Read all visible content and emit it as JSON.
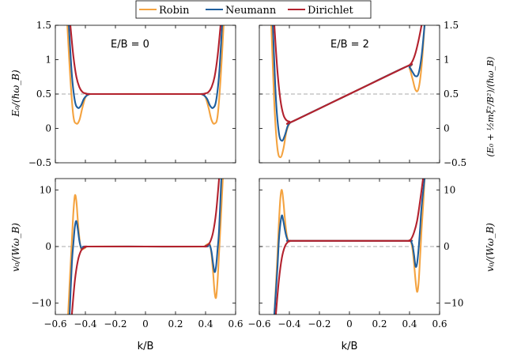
{
  "legend": {
    "entries": [
      {
        "label": "Robin",
        "color": "#f4a340"
      },
      {
        "label": "Neumann",
        "color": "#1f5f9e"
      },
      {
        "label": "Dirichlet",
        "color": "#b3222e"
      }
    ],
    "placement": "top-center"
  },
  "panels_text": {
    "left_title": "E/B = 0",
    "right_title": "E/B = 2",
    "top_left_ylabel": "E₀/(ℏω_B)",
    "top_right_ylabel": "(E₀ + ½mξ²/B²)/(ℏω_B)",
    "bottom_left_ylabel": "v₀/(Wω_B)",
    "bottom_right_ylabel": "v₀/(Wω_B)",
    "xlabel": "k/B"
  },
  "chart_data": [
    {
      "type": "line",
      "panel": "top-left",
      "title": "E/B = 0",
      "ylabel": "E₀/(ℏω_B)",
      "xlim": [
        -0.6,
        0.6
      ],
      "ylim": [
        -0.5,
        1.5
      ],
      "x_ticks": [
        -0.6,
        -0.4,
        -0.2,
        0,
        0.2,
        0.4,
        0.6
      ],
      "y_ticks": [
        -0.5,
        0,
        0.5,
        1,
        1.5
      ],
      "reference_line": 0.5,
      "series": [
        {
          "name": "Robin",
          "x": [
            -0.52,
            -0.5,
            -0.48,
            -0.46,
            -0.44,
            -0.42,
            -0.4,
            -0.38,
            -0.35,
            0,
            0.35,
            0.38,
            0.4,
            0.42,
            0.44,
            0.46,
            0.48,
            0.5,
            0.52
          ],
          "y": [
            1.5,
            0.72,
            0.18,
            0.07,
            0.12,
            0.3,
            0.45,
            0.49,
            0.5,
            0.5,
            0.5,
            0.49,
            0.45,
            0.3,
            0.12,
            0.07,
            0.18,
            0.72,
            1.5
          ]
        },
        {
          "name": "Neumann",
          "x": [
            -0.51,
            -0.49,
            -0.47,
            -0.45,
            -0.43,
            -0.41,
            -0.39,
            -0.37,
            -0.35,
            0,
            0.35,
            0.37,
            0.39,
            0.41,
            0.43,
            0.45,
            0.47,
            0.49,
            0.51
          ],
          "y": [
            1.5,
            0.78,
            0.4,
            0.3,
            0.33,
            0.43,
            0.48,
            0.5,
            0.5,
            0.5,
            0.5,
            0.5,
            0.48,
            0.43,
            0.33,
            0.3,
            0.4,
            0.78,
            1.5
          ]
        },
        {
          "name": "Dirichlet",
          "x": [
            -0.5,
            -0.48,
            -0.46,
            -0.44,
            -0.42,
            -0.4,
            -0.38,
            -0.36,
            0,
            0.36,
            0.38,
            0.4,
            0.42,
            0.44,
            0.46,
            0.48,
            0.5
          ],
          "y": [
            1.5,
            1.05,
            0.75,
            0.6,
            0.53,
            0.51,
            0.5,
            0.5,
            0.5,
            0.5,
            0.5,
            0.51,
            0.53,
            0.6,
            0.75,
            1.05,
            1.5
          ]
        }
      ]
    },
    {
      "type": "line",
      "panel": "top-right",
      "title": "E/B = 2",
      "ylabel": "(E₀ + ½mξ²/B²)/(ℏω_B)",
      "xlim": [
        -0.6,
        0.6
      ],
      "ylim": [
        -0.5,
        1.5
      ],
      "x_ticks": [
        -0.6,
        -0.4,
        -0.2,
        0,
        0.2,
        0.4,
        0.6
      ],
      "y_ticks": [
        -0.5,
        0,
        0.5,
        1,
        1.5
      ],
      "reference_line": 0.5,
      "series": [
        {
          "name": "Robin",
          "x": [
            -0.52,
            -0.5,
            -0.48,
            -0.46,
            -0.44,
            -0.42,
            -0.4,
            -0.38,
            0,
            0.38,
            0.4,
            0.42,
            0.44,
            0.46,
            0.48,
            0.5
          ],
          "y": [
            1.5,
            0.35,
            -0.28,
            -0.42,
            -0.3,
            -0.05,
            0.07,
            0.1,
            0.5,
            0.9,
            0.87,
            0.72,
            0.56,
            0.58,
            0.9,
            1.5
          ]
        },
        {
          "name": "Neumann",
          "x": [
            -0.51,
            -0.49,
            -0.47,
            -0.45,
            -0.43,
            -0.41,
            -0.39,
            -0.38,
            0,
            0.38,
            0.4,
            0.42,
            0.44,
            0.46,
            0.48,
            0.5
          ],
          "y": [
            1.5,
            0.45,
            -0.06,
            -0.18,
            -0.1,
            0.04,
            0.09,
            0.1,
            0.5,
            0.9,
            0.89,
            0.82,
            0.76,
            0.8,
            1.05,
            1.5
          ]
        },
        {
          "name": "Dirichlet",
          "x": [
            -0.5,
            -0.48,
            -0.46,
            -0.44,
            -0.42,
            -0.4,
            -0.38,
            0,
            0.38,
            0.4,
            0.42,
            0.44,
            0.46,
            0.48
          ],
          "y": [
            1.5,
            0.85,
            0.42,
            0.2,
            0.12,
            0.1,
            0.1,
            0.5,
            0.9,
            0.92,
            0.98,
            1.1,
            1.28,
            1.5
          ]
        }
      ]
    },
    {
      "type": "line",
      "panel": "bottom-left",
      "ylabel": "v₀/(Wω_B)",
      "xlabel": "k/B",
      "xlim": [
        -0.6,
        0.6
      ],
      "ylim": [
        -12,
        12
      ],
      "x_ticks": [
        -0.6,
        -0.4,
        -0.2,
        0,
        0.2,
        0.4,
        0.6
      ],
      "y_ticks": [
        -10,
        0,
        10
      ],
      "reference_line": 0,
      "series": [
        {
          "name": "Robin",
          "x": [
            -0.515,
            -0.5,
            -0.49,
            -0.48,
            -0.47,
            -0.46,
            -0.45,
            -0.44,
            -0.43,
            -0.42,
            -0.4,
            -0.38,
            0,
            0.38,
            0.4,
            0.42,
            0.43,
            0.44,
            0.45,
            0.46,
            0.47,
            0.48,
            0.49,
            0.5,
            0.515
          ],
          "y": [
            -12,
            -4,
            1,
            6,
            9,
            8,
            4.5,
            1.5,
            -0.3,
            -0.5,
            -0.2,
            0,
            0,
            0,
            0.2,
            0.5,
            0.3,
            -1.5,
            -4.5,
            -8,
            -9,
            -6,
            -1,
            4,
            12
          ]
        },
        {
          "name": "Neumann",
          "x": [
            -0.505,
            -0.49,
            -0.48,
            -0.47,
            -0.46,
            -0.45,
            -0.44,
            -0.43,
            -0.42,
            -0.4,
            -0.38,
            0,
            0.38,
            0.4,
            0.42,
            0.43,
            0.44,
            0.45,
            0.46,
            0.47,
            0.48,
            0.49,
            0.505
          ],
          "y": [
            -12,
            -3,
            0.5,
            3.5,
            4.5,
            3,
            1,
            -0.1,
            -0.3,
            -0.1,
            0,
            0,
            0,
            0.1,
            0.3,
            0.1,
            -1,
            -3,
            -4.5,
            -3.5,
            -0.5,
            3,
            12
          ]
        },
        {
          "name": "Dirichlet",
          "x": [
            -0.49,
            -0.47,
            -0.45,
            -0.43,
            -0.41,
            -0.39,
            -0.37,
            0,
            0.37,
            0.39,
            0.41,
            0.43,
            0.45,
            0.47,
            0.49
          ],
          "y": [
            -12,
            -6,
            -2.5,
            -0.8,
            -0.2,
            0,
            0,
            0,
            0,
            0,
            0.2,
            0.8,
            2.5,
            6,
            12
          ]
        }
      ]
    },
    {
      "type": "line",
      "panel": "bottom-right",
      "ylabel": "v₀/(Wω_B)",
      "xlabel": "k/B",
      "xlim": [
        -0.6,
        0.6
      ],
      "ylim": [
        -12,
        12
      ],
      "x_ticks": [
        -0.6,
        -0.4,
        -0.2,
        0,
        0.2,
        0.4,
        0.6
      ],
      "y_ticks": [
        -10,
        0,
        10
      ],
      "reference_line": 0,
      "series": [
        {
          "name": "Robin",
          "x": [
            -0.5,
            -0.48,
            -0.47,
            -0.46,
            -0.45,
            -0.44,
            -0.43,
            -0.42,
            -0.41,
            -0.4,
            -0.38,
            0,
            0.38,
            0.4,
            0.41,
            0.42,
            0.43,
            0.44,
            0.45,
            0.46,
            0.47,
            0.48,
            0.49,
            0.5
          ],
          "y": [
            -12,
            -2,
            4,
            8.5,
            10,
            8,
            5,
            2.5,
            1.2,
            0.9,
            1,
            1,
            1,
            1.1,
            0.8,
            -0.5,
            -3,
            -6,
            -8,
            -6.5,
            -2,
            3,
            7,
            12
          ]
        },
        {
          "name": "Neumann",
          "x": [
            -0.5,
            -0.48,
            -0.47,
            -0.46,
            -0.45,
            -0.44,
            -0.43,
            -0.42,
            -0.41,
            -0.4,
            -0.38,
            0,
            0.38,
            0.4,
            0.41,
            0.42,
            0.43,
            0.44,
            0.45,
            0.46,
            0.47,
            0.48,
            0.5
          ],
          "y": [
            -12,
            -4,
            1,
            4,
            5.5,
            4.5,
            3,
            1.8,
            1.1,
            1,
            1,
            1,
            1,
            1,
            0.9,
            0.2,
            -1.5,
            -3.5,
            -3,
            -0.5,
            3,
            7,
            12
          ]
        },
        {
          "name": "Dirichlet",
          "x": [
            -0.49,
            -0.47,
            -0.45,
            -0.43,
            -0.41,
            -0.39,
            -0.37,
            0,
            0.37,
            0.39,
            0.41,
            0.43,
            0.45,
            0.47,
            0.49
          ],
          "y": [
            -12,
            -6,
            -2,
            0,
            0.8,
            1,
            1,
            1,
            1,
            1,
            1.3,
            2.5,
            4.5,
            8,
            12
          ]
        }
      ]
    }
  ]
}
